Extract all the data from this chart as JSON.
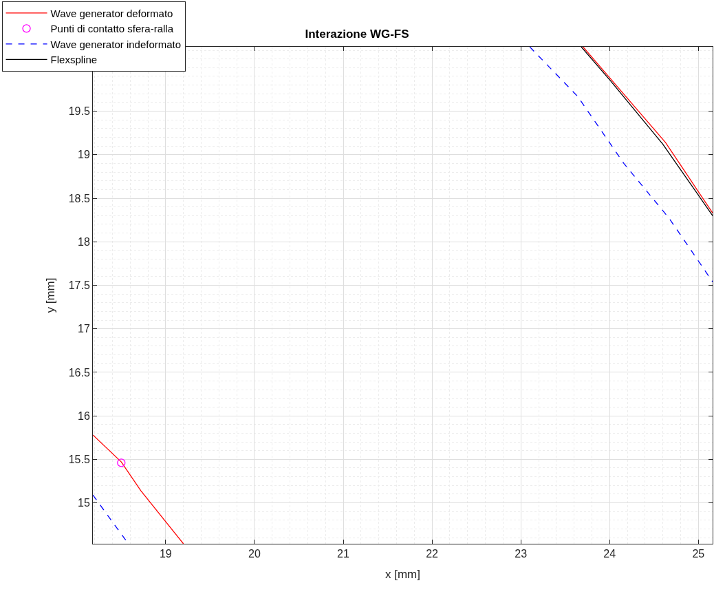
{
  "chart_data": {
    "type": "line",
    "title": "Interazione WG-FS",
    "xlabel": "x [mm]",
    "ylabel": "y [mm]",
    "xlim": [
      18.18,
      25.16
    ],
    "ylim": [
      14.53,
      20.24
    ],
    "xticks": [
      19,
      20,
      21,
      22,
      23,
      24,
      25
    ],
    "yticks": [
      15,
      15.5,
      16,
      16.5,
      17,
      17.5,
      18,
      18.5,
      19,
      19.5
    ],
    "grid": true,
    "legend": "top left",
    "series": [
      {
        "name": "Wave generator deformato",
        "color": "#ff0000",
        "line_style": "solid",
        "x": [
          18.18,
          18.5,
          18.72,
          19.2
        ],
        "values": [
          15.78,
          15.47,
          15.14,
          14.53
        ]
      },
      {
        "name": "Punti di contatto sfera-ralla",
        "type": "scatter",
        "marker": "circle",
        "color": "#ff00ff",
        "x": [
          18.5
        ],
        "values": [
          15.46
        ]
      },
      {
        "name": "Wave generator indeformato",
        "color": "#0000ff",
        "line_style": "dashed",
        "x": [
          18.18,
          18.58
        ],
        "values": [
          15.09,
          14.53
        ]
      },
      {
        "name": "Flexspline",
        "color": "#000000",
        "line_style": "solid",
        "x": [
          23.68,
          24.01,
          24.6,
          25.16
        ],
        "values": [
          20.24,
          19.85,
          19.12,
          18.3
        ]
      },
      {
        "name": null,
        "color": "#ff0000",
        "line_style": "solid",
        "x": [
          23.7,
          24.03,
          24.63,
          25.16
        ],
        "values": [
          20.24,
          19.85,
          19.14,
          18.33
        ]
      },
      {
        "name": null,
        "color": "#0000ff",
        "line_style": "dashed",
        "x": [
          23.1,
          23.64,
          24.16,
          24.67,
          25.16
        ],
        "values": [
          20.24,
          19.67,
          18.9,
          18.27,
          17.54
        ]
      }
    ]
  }
}
